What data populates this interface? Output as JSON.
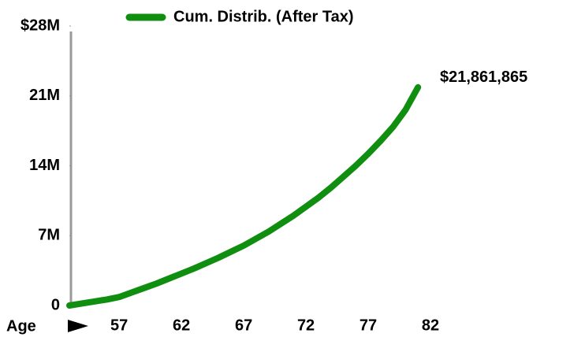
{
  "chart_data": {
    "type": "line",
    "x_label": "Age",
    "x": [
      53,
      54,
      55,
      56,
      57,
      58,
      59,
      60,
      61,
      62,
      63,
      64,
      65,
      66,
      67,
      68,
      69,
      70,
      71,
      72,
      73,
      74,
      75,
      76,
      77,
      78,
      79,
      80,
      81
    ],
    "series": [
      {
        "name": "Cum. Distrib. (After Tax)",
        "color": "#108e10",
        "values": [
          0,
          200000,
          400000,
          600000,
          850000,
          1300000,
          1750000,
          2200000,
          2700000,
          3200000,
          3700000,
          4250000,
          4800000,
          5400000,
          6000000,
          6700000,
          7400000,
          8200000,
          9000000,
          9900000,
          10800000,
          11800000,
          12900000,
          14000000,
          15200000,
          16500000,
          17900000,
          19600000,
          21861865
        ],
        "value_labels": [
          null,
          null,
          null,
          null,
          null,
          null,
          null,
          null,
          null,
          null,
          null,
          null,
          null,
          null,
          null,
          null,
          null,
          null,
          null,
          null,
          null,
          null,
          null,
          null,
          null,
          null,
          null,
          null,
          "$21,861,865"
        ]
      }
    ],
    "xlim": [
      53,
      82
    ],
    "xticks": [
      57,
      62,
      67,
      72,
      77,
      82
    ],
    "ylim": [
      0,
      28000000
    ],
    "yticks": [
      0,
      {
        "value": 7000000,
        "label": "7M"
      },
      {
        "value": 14000000,
        "label": "14M"
      },
      {
        "value": 21000000,
        "label": "21M"
      },
      {
        "value": 28000000,
        "label": "$28M"
      }
    ]
  }
}
